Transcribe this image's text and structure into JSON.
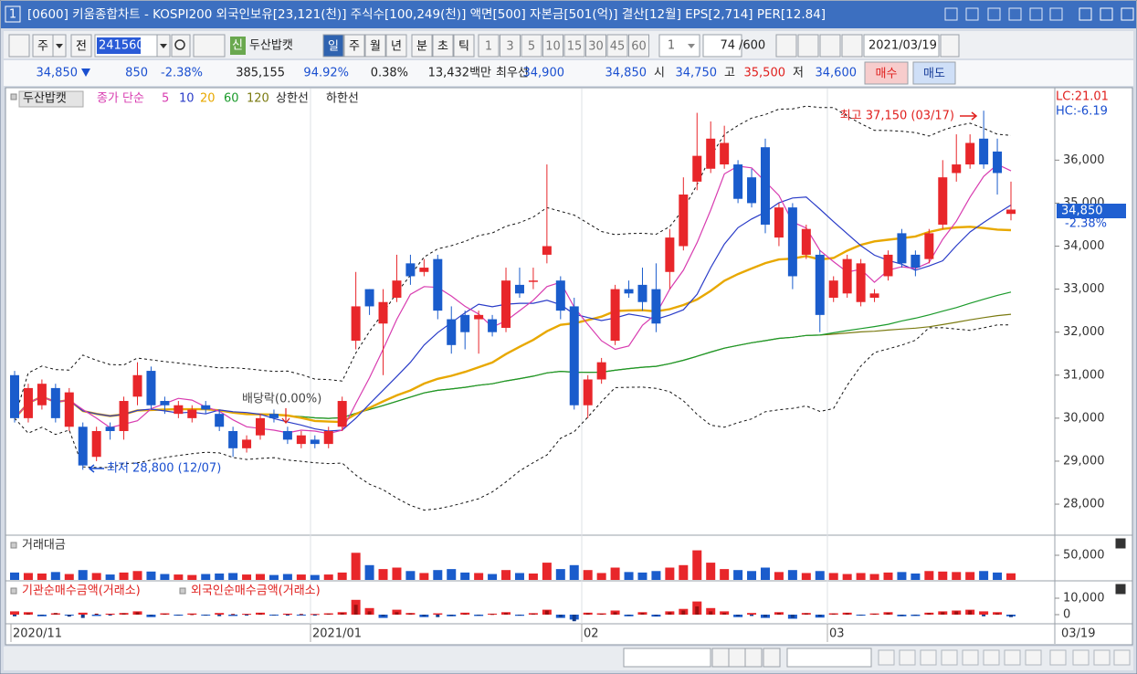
{
  "window": {
    "number": "1",
    "title": "[0600] 키움종합차트 - KOSPI200 외국인보유[23,121(천)] 주식수[100,249(천)] 액면[500] 자본금[501(억)] 결산[12월] EPS[2,714] PER[12.84]"
  },
  "toolbar": {
    "period_type": "주",
    "compare": "전",
    "code": "241560",
    "badge": "신",
    "name": "두산밥캣",
    "intervals": [
      "일",
      "주",
      "월",
      "년",
      "분",
      "초",
      "틱"
    ],
    "minutes": [
      "1",
      "3",
      "5",
      "10",
      "15",
      "30",
      "45",
      "60"
    ],
    "multiplier": "1",
    "count": "74",
    "total": "/600",
    "date": "2021/03/19"
  },
  "quote": {
    "price": "34,850",
    "change": "850",
    "change_pct": "-2.38%",
    "volume": "385,155",
    "prev_ratio": "94.92%",
    "turnover": "0.38%",
    "amount": "13,432백만",
    "best_label": "최우선",
    "ask": "34,900",
    "bid": "34,850",
    "open_label": "시",
    "open": "34,750",
    "high_label": "고",
    "high": "35,500",
    "low_label": "저",
    "low": "34,600",
    "buy": "매수",
    "sell": "매도"
  },
  "chart_data": [
    {
      "type": "candlestick",
      "name": "두산밥캣",
      "ma_label": "종가 단순",
      "moving_averages": [
        {
          "period": 5,
          "color": "#d83cb0"
        },
        {
          "period": 10,
          "color": "#2a3cc8"
        },
        {
          "period": 20,
          "color": "#e8a800"
        },
        {
          "period": 60,
          "color": "#1a9a2a"
        },
        {
          "period": 120,
          "color": "#7a7a10"
        }
      ],
      "bands": {
        "upper": "상한선",
        "lower": "하한선"
      },
      "up_color": "#e8262a",
      "down_color": "#1a5ccc",
      "ohlc": {
        "open": [
          31000,
          30000,
          30300,
          30700,
          29800,
          29800,
          29100,
          29800,
          29700,
          30500,
          31100,
          30400,
          30100,
          30000,
          30300,
          30100,
          29700,
          29300,
          29600,
          30100,
          29700,
          29400,
          29500,
          29400,
          29800,
          31800,
          33000,
          32200,
          32800,
          33600,
          33400,
          33700,
          32300,
          32400,
          32300,
          32300,
          32100,
          33100,
          33200,
          33800,
          33200,
          32600,
          30300,
          30900,
          31800,
          33000,
          33100,
          33000,
          33400,
          34000,
          35500,
          35800,
          35900,
          35900,
          35600,
          36300,
          34200,
          34900,
          33800,
          33800,
          32800,
          32900,
          32700,
          32800,
          33300,
          34300,
          33800,
          33700,
          34500,
          35700,
          35900,
          36500,
          36200,
          34750
        ],
        "high": [
          31100,
          30800,
          30900,
          30800,
          30700,
          29900,
          29800,
          29900,
          30500,
          31300,
          31200,
          30500,
          30400,
          30300,
          30400,
          30200,
          29800,
          29600,
          30100,
          30200,
          29800,
          29700,
          29600,
          29800,
          30500,
          33400,
          33000,
          33000,
          33800,
          33800,
          33700,
          33800,
          32600,
          32500,
          32500,
          32400,
          33500,
          33500,
          33500,
          35900,
          33300,
          32800,
          31000,
          31400,
          33100,
          33200,
          33500,
          33600,
          34400,
          35600,
          37100,
          36900,
          36800,
          36000,
          35800,
          36500,
          35000,
          35000,
          34500,
          33900,
          33300,
          33800,
          33700,
          33000,
          33900,
          34400,
          33900,
          34400,
          36000,
          36600,
          36600,
          37150,
          36500,
          35500
        ],
        "low": [
          29900,
          29900,
          30200,
          29900,
          29700,
          28800,
          29000,
          29500,
          29500,
          30300,
          30200,
          30100,
          30000,
          29900,
          30100,
          29700,
          29100,
          29200,
          29500,
          29900,
          29400,
          29300,
          29300,
          29300,
          29700,
          31600,
          32400,
          31000,
          32700,
          33100,
          33300,
          32300,
          31500,
          31600,
          31500,
          31900,
          32000,
          32800,
          33000,
          33600,
          32300,
          30200,
          30000,
          30800,
          31700,
          32800,
          32500,
          32000,
          33000,
          33900,
          35300,
          35700,
          35800,
          35000,
          34900,
          34300,
          34000,
          33000,
          33700,
          32000,
          32700,
          32800,
          32600,
          32700,
          33200,
          33500,
          33300,
          33600,
          34400,
          35500,
          35800,
          35800,
          35200,
          34600
        ],
        "close": [
          30000,
          30700,
          30800,
          30000,
          30600,
          28900,
          29700,
          29700,
          30400,
          31000,
          30300,
          30300,
          30300,
          30200,
          30200,
          29800,
          29300,
          29500,
          30000,
          30000,
          29500,
          29600,
          29400,
          29700,
          30400,
          32600,
          32600,
          32700,
          33200,
          33300,
          33500,
          32500,
          31700,
          32000,
          32400,
          32000,
          33200,
          32900,
          33200,
          34000,
          32500,
          30300,
          30900,
          31300,
          33000,
          32900,
          32700,
          32200,
          34200,
          35200,
          36100,
          36500,
          36400,
          35100,
          35000,
          34500,
          34900,
          33300,
          34400,
          32400,
          33200,
          33700,
          33600,
          32900,
          33800,
          33600,
          33500,
          34300,
          35600,
          35900,
          36400,
          35900,
          35700,
          34850
        ]
      },
      "ylim": [
        27300,
        37600
      ],
      "yticks": [
        {
          "value": 28000,
          "label": "28,000"
        },
        {
          "value": 29000,
          "label": "29,000"
        },
        {
          "value": 30000,
          "label": "30,000"
        },
        {
          "value": 31000,
          "label": "31,000"
        },
        {
          "value": 32000,
          "label": "32,000"
        },
        {
          "value": 33000,
          "label": "33,000"
        },
        {
          "value": 34000,
          "label": "34,000"
        },
        {
          "value": 35000,
          "label": "35,000"
        },
        {
          "value": 36000,
          "label": "36,000"
        }
      ],
      "annotations": {
        "high": "최고 37,150 (03/17)",
        "low": "최저 28,800 (12/07)",
        "event": "배당락(0.00%)"
      },
      "lc": "LC:21.01",
      "hc": "HC:-6.19",
      "last_label": "34,850",
      "last_change": "-2.38%"
    },
    {
      "type": "bar",
      "title": "거래대금",
      "values": [
        15000,
        14000,
        13000,
        16000,
        12000,
        20000,
        14000,
        11000,
        15000,
        18000,
        17000,
        12000,
        11000,
        10000,
        12000,
        13000,
        14000,
        11000,
        12000,
        10000,
        12000,
        11000,
        10000,
        11000,
        15000,
        55000,
        30000,
        22000,
        25000,
        18000,
        14000,
        20000,
        22000,
        15000,
        14000,
        12000,
        20000,
        14000,
        13000,
        35000,
        22000,
        30000,
        20000,
        14000,
        25000,
        16000,
        15000,
        18000,
        25000,
        30000,
        60000,
        35000,
        22000,
        20000,
        18000,
        25000,
        16000,
        20000,
        14000,
        18000,
        14000,
        12000,
        14000,
        12000,
        15000,
        16000,
        13000,
        18000,
        17000,
        16000,
        16000,
        18000,
        15000,
        13432
      ],
      "ylim": [
        0,
        87000
      ],
      "yticks": [
        {
          "value": 50000,
          "label": "50,000"
        }
      ]
    },
    {
      "type": "bar",
      "series": [
        {
          "name": "기관순매수금액(거래소)",
          "values": [
            2000,
            1500,
            -1000,
            800,
            -500,
            1200,
            -800,
            600,
            1000,
            2000,
            -1500,
            800,
            -600,
            700,
            -400,
            1000,
            -800,
            500,
            1200,
            -500,
            600,
            -300,
            400,
            800,
            1500,
            9000,
            4000,
            -2000,
            3000,
            1000,
            -1500,
            800,
            -1000,
            1200,
            -800,
            600,
            1500,
            -700,
            900,
            3000,
            -2000,
            -3000,
            1200,
            800,
            2500,
            -1000,
            1500,
            -1200,
            2000,
            3500,
            8000,
            4000,
            2000,
            -1500,
            1000,
            -2000,
            1500,
            -2500,
            1000,
            -1800,
            800,
            1200,
            -600,
            700,
            1500,
            -1000,
            -800,
            1200,
            2000,
            2500,
            3000,
            2000,
            1500,
            -1000
          ]
        },
        {
          "name": "외국인순매수금액(거래소)",
          "values": [
            -1000,
            800,
            -500,
            1000,
            -1200,
            -2000,
            600,
            -400,
            800,
            1500,
            -800,
            500,
            -400,
            300,
            -600,
            -900,
            400,
            -300,
            700,
            -200,
            -500,
            400,
            -300,
            600,
            1000,
            6000,
            2000,
            -1000,
            1500,
            800,
            -1000,
            -1500,
            -800,
            600,
            -500,
            400,
            1000,
            -500,
            600,
            2500,
            -1500,
            -4000,
            800,
            500,
            1500,
            -700,
            1000,
            -900,
            1500,
            2500,
            5000,
            2000,
            1000,
            -1000,
            -800,
            -1500,
            1000,
            -2000,
            800,
            -1200,
            600,
            900,
            -400,
            500,
            1000,
            -800,
            -600,
            900,
            1500,
            2000,
            2500,
            -1000,
            800,
            -1500
          ]
        }
      ],
      "ylim": [
        -5000,
        20000
      ],
      "yticks": [
        {
          "value": 10000,
          "label": "10,000"
        },
        0
      ]
    }
  ],
  "x_axis": {
    "labels": [
      "2020/11",
      "2021/01",
      "02",
      "03"
    ],
    "current": "03/19"
  }
}
